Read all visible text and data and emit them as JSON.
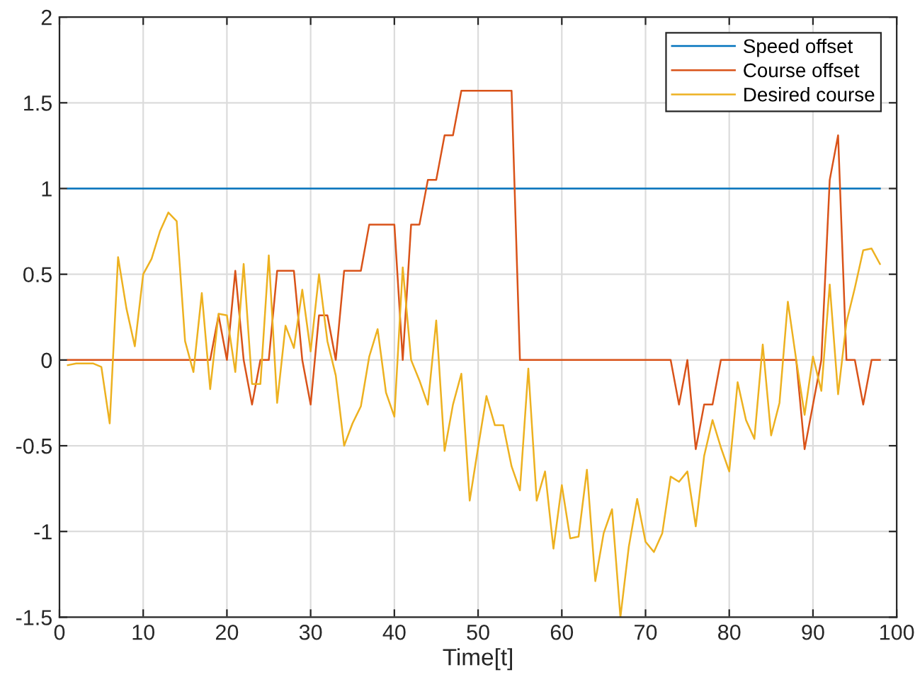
{
  "chart_data": {
    "type": "line",
    "xlabel": "Time[t]",
    "x": [
      1,
      2,
      3,
      4,
      5,
      6,
      7,
      8,
      9,
      10,
      11,
      12,
      13,
      14,
      15,
      16,
      17,
      18,
      19,
      20,
      21,
      22,
      23,
      24,
      25,
      26,
      27,
      28,
      29,
      30,
      31,
      32,
      33,
      34,
      35,
      36,
      37,
      38,
      39,
      40,
      41,
      42,
      43,
      44,
      45,
      46,
      47,
      48,
      49,
      50,
      51,
      52,
      53,
      54,
      55,
      56,
      57,
      58,
      59,
      60,
      61,
      62,
      63,
      64,
      65,
      66,
      67,
      68,
      69,
      70,
      71,
      72,
      73,
      74,
      75,
      76,
      77,
      78,
      79,
      80,
      81,
      82,
      83,
      84,
      85,
      86,
      87,
      88,
      89,
      90,
      91,
      92,
      93,
      94,
      95,
      96,
      97,
      98
    ],
    "series": [
      {
        "name": "Speed offset",
        "color": "#0072bd",
        "values": [
          1,
          1,
          1,
          1,
          1,
          1,
          1,
          1,
          1,
          1,
          1,
          1,
          1,
          1,
          1,
          1,
          1,
          1,
          1,
          1,
          1,
          1,
          1,
          1,
          1,
          1,
          1,
          1,
          1,
          1,
          1,
          1,
          1,
          1,
          1,
          1,
          1,
          1,
          1,
          1,
          1,
          1,
          1,
          1,
          1,
          1,
          1,
          1,
          1,
          1,
          1,
          1,
          1,
          1,
          1,
          1,
          1,
          1,
          1,
          1,
          1,
          1,
          1,
          1,
          1,
          1,
          1,
          1,
          1,
          1,
          1,
          1,
          1,
          1,
          1,
          1,
          1,
          1,
          1,
          1,
          1,
          1,
          1,
          1,
          1,
          1,
          1,
          1,
          1,
          1,
          1,
          1,
          1,
          1,
          1,
          1,
          1,
          1
        ]
      },
      {
        "name": "Course offset",
        "color": "#d95319",
        "values": [
          0,
          0,
          0,
          0,
          0,
          0,
          0,
          0,
          0,
          0,
          0,
          0,
          0,
          0,
          0,
          0,
          0,
          0,
          0.26,
          0,
          0.52,
          0,
          -0.26,
          0,
          0,
          0.52,
          0.52,
          0.52,
          0,
          -0.26,
          0.26,
          0.26,
          0,
          0.52,
          0.52,
          0.52,
          0.79,
          0.79,
          0.79,
          0.79,
          0,
          0.79,
          0.79,
          1.05,
          1.05,
          1.31,
          1.31,
          1.57,
          1.57,
          1.57,
          1.57,
          1.57,
          1.57,
          1.57,
          0,
          0,
          0,
          0,
          0,
          0,
          0,
          0,
          0,
          0,
          0,
          0,
          0,
          0,
          0,
          0,
          0,
          0,
          0,
          -0.26,
          0,
          -0.52,
          -0.26,
          -0.26,
          0,
          0,
          0,
          0,
          0,
          0,
          0,
          0,
          0,
          0,
          -0.52,
          -0.26,
          0,
          1.05,
          1.31,
          0,
          0,
          -0.26,
          0,
          0
        ]
      },
      {
        "name": "Desired course",
        "color": "#edb120",
        "values": [
          -0.03,
          -0.02,
          -0.02,
          -0.02,
          -0.04,
          -0.37,
          0.6,
          0.3,
          0.08,
          0.5,
          0.59,
          0.75,
          0.86,
          0.81,
          0.11,
          -0.07,
          0.39,
          -0.17,
          0.27,
          0.26,
          -0.07,
          0.56,
          -0.14,
          -0.14,
          0.61,
          -0.25,
          0.2,
          0.07,
          0.41,
          0.05,
          0.5,
          0.11,
          -0.09,
          -0.5,
          -0.37,
          -0.27,
          0.02,
          0.18,
          -0.19,
          -0.33,
          0.54,
          0.0,
          -0.12,
          -0.26,
          0.23,
          -0.53,
          -0.26,
          -0.08,
          -0.82,
          -0.51,
          -0.21,
          -0.38,
          -0.38,
          -0.62,
          -0.76,
          -0.05,
          -0.82,
          -0.65,
          -1.1,
          -0.73,
          -1.04,
          -1.03,
          -0.64,
          -1.29,
          -1.01,
          -0.87,
          -1.5,
          -1.09,
          -0.81,
          -1.06,
          -1.12,
          -1.01,
          -0.68,
          -0.71,
          -0.65,
          -0.97,
          -0.56,
          -0.35,
          -0.51,
          -0.65,
          -0.13,
          -0.35,
          -0.46,
          0.09,
          -0.44,
          -0.25,
          0.34,
          0.0,
          -0.32,
          0.02,
          -0.18,
          0.44,
          -0.2,
          0.22,
          0.42,
          0.64,
          0.65,
          0.56
        ]
      }
    ],
    "xlim": [
      0,
      100
    ],
    "xticks": [
      0,
      10,
      20,
      30,
      40,
      50,
      60,
      70,
      80,
      90,
      100
    ],
    "ylim": [
      -1.5,
      2
    ],
    "yticks": [
      -1.5,
      -1,
      -0.5,
      0,
      0.5,
      1,
      1.5,
      2
    ],
    "grid": true,
    "legend": "top right",
    "marker": "none",
    "line_style": "solid"
  }
}
